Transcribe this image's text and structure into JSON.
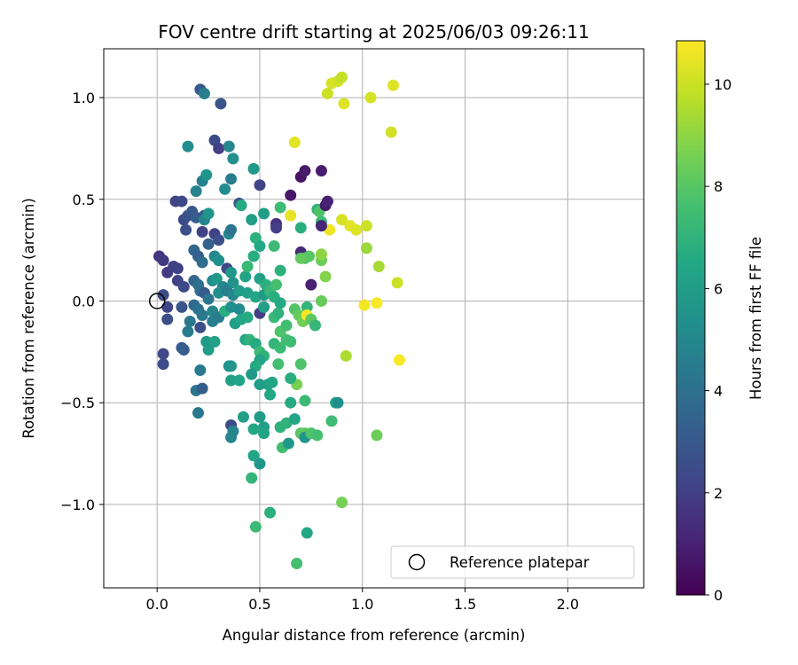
{
  "chart_data": {
    "type": "scatter",
    "title": "FOV centre drift starting at 2025/06/03 09:26:11",
    "xlabel": "Angular distance from reference (arcmin)",
    "ylabel": "Rotation from reference (arcmin)",
    "xlim": [
      -0.26,
      2.37
    ],
    "ylim": [
      -1.41,
      1.24
    ],
    "xticks": [
      0.0,
      0.5,
      1.0,
      1.5,
      2.0
    ],
    "xtick_labels": [
      "0.0",
      "0.5",
      "1.0",
      "1.5",
      "2.0"
    ],
    "yticks": [
      -1.0,
      -0.5,
      0.0,
      0.5,
      1.0
    ],
    "ytick_labels": [
      "−1.0",
      "−0.5",
      "0.0",
      "0.5",
      "1.0"
    ],
    "grid": true,
    "legend_position": "bottom-right",
    "legend": [
      {
        "label": "Reference platepar",
        "marker": "open-circle"
      }
    ],
    "reference_point": {
      "x": 0.0,
      "y": 0.0
    },
    "colorbar": {
      "label": "Hours from first FF file",
      "colormap": "viridis",
      "range": [
        0,
        10.85
      ],
      "ticks": [
        0,
        2,
        4,
        6,
        8,
        10
      ],
      "tick_labels": [
        "0",
        "2",
        "4",
        "6",
        "8",
        "10"
      ]
    },
    "points": [
      [
        0.01,
        0.22,
        1.6
      ],
      [
        0.03,
        0.2,
        1.8
      ],
      [
        0.08,
        0.17,
        2.0
      ],
      [
        0.05,
        0.14,
        1.9
      ],
      [
        0.1,
        0.16,
        2.1
      ],
      [
        0.1,
        0.1,
        2.2
      ],
      [
        0.13,
        0.07,
        2.4
      ],
      [
        0.03,
        0.03,
        2.5
      ],
      [
        0.05,
        -0.03,
        2.3
      ],
      [
        0.05,
        -0.09,
        2.6
      ],
      [
        0.03,
        -0.26,
        2.4
      ],
      [
        0.03,
        -0.31,
        2.5
      ],
      [
        0.12,
        -0.03,
        2.8
      ],
      [
        0.12,
        -0.23,
        3.0
      ],
      [
        0.13,
        -0.24,
        3.2
      ],
      [
        0.09,
        0.49,
        2.2
      ],
      [
        0.12,
        0.49,
        2.4
      ],
      [
        0.13,
        0.4,
        2.5
      ],
      [
        0.14,
        0.35,
        2.6
      ],
      [
        0.15,
        0.42,
        2.7
      ],
      [
        0.17,
        0.44,
        3.0
      ],
      [
        0.19,
        0.41,
        3.2
      ],
      [
        0.22,
        0.34,
        2.1
      ],
      [
        0.23,
        0.42,
        2.9
      ],
      [
        0.25,
        0.28,
        3.4
      ],
      [
        0.18,
        0.25,
        3.6
      ],
      [
        0.2,
        0.22,
        3.3
      ],
      [
        0.22,
        0.19,
        3.8
      ],
      [
        0.18,
        0.1,
        3.5
      ],
      [
        0.2,
        0.08,
        3.9
      ],
      [
        0.21,
        0.05,
        4.0
      ],
      [
        0.23,
        0.04,
        3.1
      ],
      [
        0.25,
        0.01,
        4.2
      ],
      [
        0.18,
        -0.02,
        3.7
      ],
      [
        0.2,
        -0.04,
        4.1
      ],
      [
        0.22,
        -0.07,
        4.4
      ],
      [
        0.16,
        -0.1,
        4.3
      ],
      [
        0.15,
        -0.15,
        4.5
      ],
      [
        0.21,
        -0.13,
        2.6
      ],
      [
        0.27,
        -0.1,
        4.6
      ],
      [
        0.19,
        -0.44,
        4.2
      ],
      [
        0.22,
        -0.43,
        3.2
      ],
      [
        0.21,
        -0.34,
        4.4
      ],
      [
        0.2,
        -0.55,
        4.3
      ],
      [
        0.21,
        1.04,
        3.0
      ],
      [
        0.23,
        1.02,
        4.6
      ],
      [
        0.31,
        0.97,
        2.8
      ],
      [
        0.15,
        0.76,
        5.2
      ],
      [
        0.28,
        0.79,
        2.4
      ],
      [
        0.3,
        0.75,
        2.0
      ],
      [
        0.35,
        0.76,
        5.0
      ],
      [
        0.37,
        0.7,
        5.4
      ],
      [
        0.22,
        0.59,
        4.6
      ],
      [
        0.24,
        0.62,
        5.6
      ],
      [
        0.19,
        0.54,
        4.8
      ],
      [
        0.33,
        0.55,
        5.2
      ],
      [
        0.36,
        0.6,
        4.5
      ],
      [
        0.23,
        0.4,
        5.0
      ],
      [
        0.25,
        0.43,
        5.6
      ],
      [
        0.28,
        0.33,
        2.1
      ],
      [
        0.3,
        0.3,
        2.6
      ],
      [
        0.35,
        0.33,
        5.0
      ],
      [
        0.36,
        0.35,
        4.2
      ],
      [
        0.4,
        0.48,
        2.7
      ],
      [
        0.41,
        0.47,
        6.6
      ],
      [
        0.47,
        0.65,
        5.8
      ],
      [
        0.5,
        0.57,
        2.2
      ],
      [
        0.46,
        0.4,
        6.1
      ],
      [
        0.52,
        0.43,
        6.0
      ],
      [
        0.28,
        0.22,
        5.0
      ],
      [
        0.3,
        0.2,
        5.4
      ],
      [
        0.27,
        0.1,
        5.2
      ],
      [
        0.29,
        0.11,
        5.8
      ],
      [
        0.32,
        0.07,
        4.9
      ],
      [
        0.3,
        0.04,
        5.3
      ],
      [
        0.34,
        0.16,
        2.3
      ],
      [
        0.36,
        0.14,
        5.7
      ],
      [
        0.34,
        0.05,
        4.6
      ],
      [
        0.37,
        0.03,
        5.0
      ],
      [
        0.37,
        0.09,
        5.5
      ],
      [
        0.4,
        0.05,
        6.0
      ],
      [
        0.43,
        0.12,
        6.3
      ],
      [
        0.44,
        0.17,
        7.2
      ],
      [
        0.47,
        0.22,
        6.7
      ],
      [
        0.48,
        0.31,
        6.9
      ],
      [
        0.5,
        0.27,
        6.5
      ],
      [
        0.44,
        0.04,
        6.1
      ],
      [
        0.48,
        0.02,
        6.4
      ],
      [
        0.5,
        0.11,
        6.2
      ],
      [
        0.53,
        0.08,
        6.8
      ],
      [
        0.52,
        0.03,
        5.9
      ],
      [
        0.55,
        0.04,
        6.6
      ],
      [
        0.27,
        -0.05,
        5.0
      ],
      [
        0.3,
        -0.08,
        4.6
      ],
      [
        0.33,
        -0.05,
        6.8
      ],
      [
        0.36,
        -0.03,
        5.4
      ],
      [
        0.4,
        -0.04,
        5.2
      ],
      [
        0.38,
        -0.11,
        6.0
      ],
      [
        0.41,
        -0.09,
        6.3
      ],
      [
        0.44,
        -0.08,
        6.6
      ],
      [
        0.5,
        -0.06,
        2.0
      ],
      [
        0.52,
        -0.03,
        6.1
      ],
      [
        0.24,
        -0.2,
        5.8
      ],
      [
        0.25,
        -0.24,
        6.0
      ],
      [
        0.28,
        -0.2,
        6.2
      ],
      [
        0.43,
        -0.19,
        6.4
      ],
      [
        0.45,
        -0.19,
        7.0
      ],
      [
        0.48,
        -0.21,
        6.6
      ],
      [
        0.5,
        -0.25,
        7.4
      ],
      [
        0.52,
        -0.27,
        7.0
      ],
      [
        0.5,
        -0.29,
        6.3
      ],
      [
        0.48,
        -0.32,
        6.6
      ],
      [
        0.46,
        -0.36,
        5.8
      ],
      [
        0.35,
        -0.32,
        5.4
      ],
      [
        0.36,
        -0.32,
        5.6
      ],
      [
        0.36,
        -0.39,
        6.1
      ],
      [
        0.4,
        -0.39,
        6.3
      ],
      [
        0.5,
        -0.41,
        6.0
      ],
      [
        0.54,
        -0.41,
        6.2
      ],
      [
        0.56,
        -0.4,
        6.4
      ],
      [
        0.55,
        -0.46,
        6.5
      ],
      [
        0.59,
        -0.31,
        7.6
      ],
      [
        0.57,
        -0.21,
        7.1
      ],
      [
        0.6,
        -0.23,
        7.3
      ],
      [
        0.63,
        -0.19,
        7.6
      ],
      [
        0.65,
        -0.2,
        7.4
      ],
      [
        0.6,
        -0.15,
        7.8
      ],
      [
        0.55,
        0.05,
        7.2
      ],
      [
        0.58,
        0.08,
        7.6
      ],
      [
        0.57,
        0.02,
        6.8
      ],
      [
        0.57,
        -0.08,
        7.3
      ],
      [
        0.59,
        -0.06,
        7.0
      ],
      [
        0.6,
        -0.01,
        6.6
      ],
      [
        0.63,
        -0.12,
        7.5
      ],
      [
        0.6,
        0.15,
        6.9
      ],
      [
        0.57,
        0.27,
        7.3
      ],
      [
        0.58,
        0.37,
        7.2
      ],
      [
        0.6,
        0.46,
        7.4
      ],
      [
        0.58,
        0.38,
        1.6
      ],
      [
        0.58,
        0.36,
        2.0
      ],
      [
        0.65,
        0.42,
        10.5
      ],
      [
        0.65,
        0.52,
        0.7
      ],
      [
        0.67,
        0.78,
        10.4
      ],
      [
        0.7,
        0.61,
        0.6
      ],
      [
        0.72,
        0.64,
        0.8
      ],
      [
        0.8,
        0.64,
        0.9
      ],
      [
        0.78,
        0.45,
        7.0
      ],
      [
        0.79,
        0.44,
        7.8
      ],
      [
        0.8,
        0.39,
        7.4
      ],
      [
        0.82,
        0.47,
        0.8
      ],
      [
        0.83,
        0.49,
        1.0
      ],
      [
        0.84,
        0.35,
        10.6
      ],
      [
        0.8,
        0.37,
        1.2
      ],
      [
        0.7,
        0.36,
        6.8
      ],
      [
        0.7,
        0.24,
        1.3
      ],
      [
        0.72,
        0.21,
        7.8
      ],
      [
        0.74,
        0.22,
        8.0
      ],
      [
        0.7,
        0.21,
        8.2
      ],
      [
        0.8,
        0.2,
        8.4
      ],
      [
        0.8,
        0.23,
        9.0
      ],
      [
        0.82,
        0.12,
        8.8
      ],
      [
        0.75,
        0.08,
        1.0
      ],
      [
        0.8,
        0.0,
        8.3
      ],
      [
        0.67,
        -0.04,
        7.9
      ],
      [
        0.69,
        -0.07,
        8.3
      ],
      [
        0.71,
        -0.1,
        8.5
      ],
      [
        0.73,
        -0.03,
        7.1
      ],
      [
        0.73,
        -0.07,
        10.7
      ],
      [
        0.75,
        -0.09,
        8.1
      ],
      [
        0.77,
        -0.12,
        7.2
      ],
      [
        0.7,
        -0.31,
        7.8
      ],
      [
        0.68,
        -0.41,
        8.6
      ],
      [
        0.65,
        -0.38,
        6.8
      ],
      [
        0.72,
        -0.49,
        7.3
      ],
      [
        0.65,
        -0.5,
        6.6
      ],
      [
        0.63,
        -0.6,
        7.0
      ],
      [
        0.67,
        -0.58,
        6.4
      ],
      [
        0.7,
        -0.65,
        8.0
      ],
      [
        0.72,
        -0.65,
        8.2
      ],
      [
        0.72,
        -0.67,
        5.6
      ],
      [
        0.75,
        -0.65,
        7.8
      ],
      [
        0.78,
        -0.66,
        7.6
      ],
      [
        0.85,
        -0.59,
        7.4
      ],
      [
        0.87,
        -0.5,
        6.5
      ],
      [
        0.88,
        -0.5,
        5.4
      ],
      [
        0.6,
        -0.62,
        7.0
      ],
      [
        0.61,
        -0.72,
        7.5
      ],
      [
        0.64,
        -0.7,
        5.8
      ],
      [
        0.52,
        -0.62,
        6.0
      ],
      [
        0.52,
        -0.65,
        6.3
      ],
      [
        0.5,
        -0.57,
        5.9
      ],
      [
        0.47,
        -0.63,
        6.5
      ],
      [
        0.42,
        -0.57,
        6.1
      ],
      [
        0.36,
        -0.61,
        2.5
      ],
      [
        0.37,
        -0.64,
        4.9
      ],
      [
        0.36,
        -0.67,
        5.0
      ],
      [
        0.47,
        -0.76,
        6.4
      ],
      [
        0.5,
        -0.8,
        5.6
      ],
      [
        0.46,
        -0.87,
        7.1
      ],
      [
        0.48,
        -1.11,
        7.3
      ],
      [
        0.55,
        -1.04,
        6.9
      ],
      [
        0.73,
        -1.14,
        6.4
      ],
      [
        0.68,
        -1.29,
        7.6
      ],
      [
        0.9,
        -0.99,
        8.6
      ],
      [
        1.07,
        -0.66,
        8.4
      ],
      [
        0.9,
        0.4,
        10.2
      ],
      [
        0.94,
        0.37,
        10.4
      ],
      [
        0.97,
        0.35,
        10.3
      ],
      [
        1.01,
        -0.02,
        10.7
      ],
      [
        1.02,
        0.37,
        10.0
      ],
      [
        1.02,
        0.26,
        9.2
      ],
      [
        1.07,
        -0.01,
        10.8
      ],
      [
        1.08,
        0.17,
        9.4
      ],
      [
        1.14,
        0.83,
        10.1
      ],
      [
        1.15,
        1.06,
        10.3
      ],
      [
        1.17,
        0.09,
        10.0
      ],
      [
        1.18,
        -0.29,
        10.8
      ],
      [
        0.92,
        -0.27,
        9.5
      ],
      [
        0.83,
        1.02,
        10.0
      ],
      [
        0.85,
        1.07,
        10.2
      ],
      [
        0.88,
        1.08,
        10.1
      ],
      [
        0.9,
        1.1,
        9.9
      ],
      [
        0.91,
        0.97,
        10.3
      ],
      [
        1.04,
        1.0,
        10.2
      ]
    ]
  }
}
